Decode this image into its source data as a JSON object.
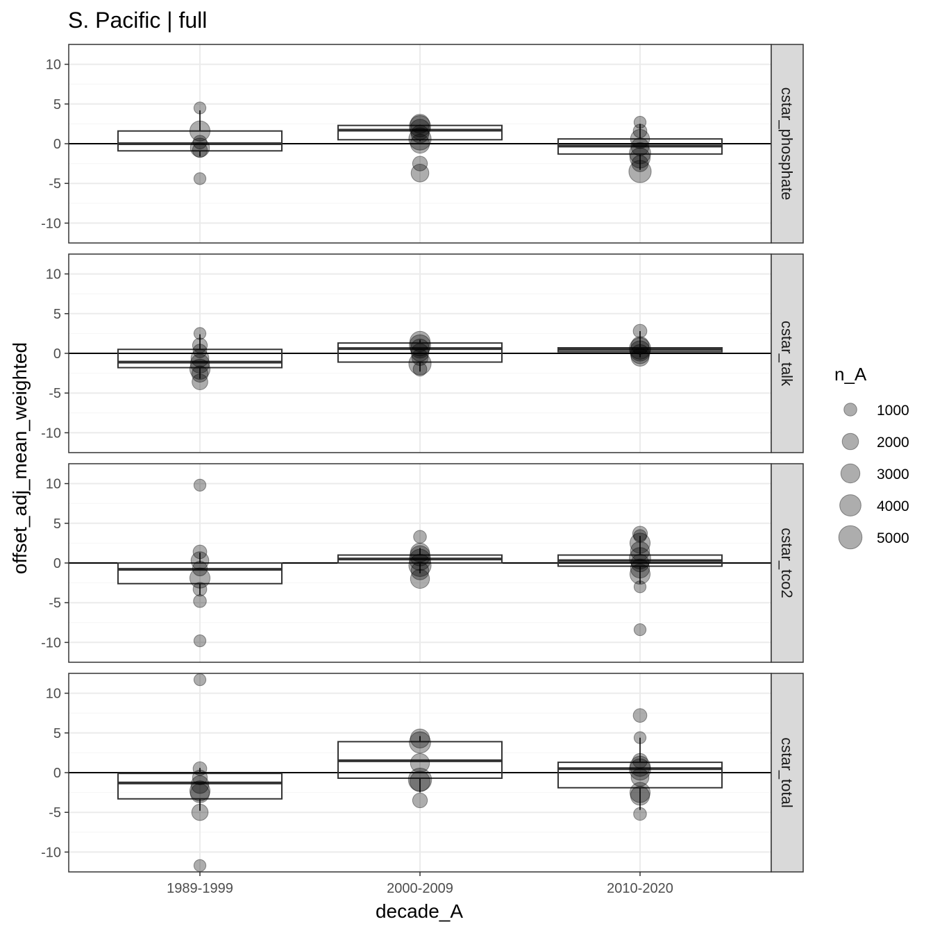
{
  "chart_data": {
    "type": "box",
    "title": "S. Pacific | full",
    "xlabel": "decade_A",
    "ylabel": "offset_adj_mean_weighted",
    "categories": [
      "1989-1999",
      "2000-2009",
      "2010-2020"
    ],
    "ylim": [
      -12.5,
      12.5
    ],
    "yticks": [
      -10,
      -5,
      0,
      5,
      10
    ],
    "reference_line_y": 0,
    "grid": true,
    "colors": {
      "points": "#000000",
      "box": "#333333",
      "strip": "#d9d9d9",
      "grid_major": "#ebebeb",
      "grid_minor": "#f5f5f5"
    },
    "legend": {
      "title": "n_A",
      "position": "right",
      "sizes": [
        1000,
        2000,
        3000,
        4000,
        5000
      ]
    },
    "panels": [
      {
        "name": "cstar_phosphate",
        "boxes": [
          {
            "category": "1989-1999",
            "q1": -0.9,
            "median": 0.0,
            "q3": 1.6,
            "whisker_low": -1.6,
            "whisker_high": 4.2
          },
          {
            "category": "2000-2009",
            "q1": 0.5,
            "median": 1.7,
            "q3": 2.3,
            "whisker_low": 0.3,
            "whisker_high": 2.4
          },
          {
            "category": "2010-2020",
            "q1": -1.3,
            "median": -0.3,
            "q3": 0.6,
            "whisker_low": -3.3,
            "whisker_high": 2.5
          }
        ],
        "points": [
          {
            "x": "1989-1999",
            "y": 4.5,
            "n": 800
          },
          {
            "x": "1989-1999",
            "y": 1.6,
            "n": 3500
          },
          {
            "x": "1989-1999",
            "y": 0.2,
            "n": 1200
          },
          {
            "x": "1989-1999",
            "y": -0.5,
            "n": 3000
          },
          {
            "x": "1989-1999",
            "y": -0.8,
            "n": 1500
          },
          {
            "x": "1989-1999",
            "y": -4.4,
            "n": 800
          },
          {
            "x": "2000-2009",
            "y": 2.5,
            "n": 3000
          },
          {
            "x": "2000-2009",
            "y": 2.2,
            "n": 4000
          },
          {
            "x": "2000-2009",
            "y": 1.8,
            "n": 3500
          },
          {
            "x": "2000-2009",
            "y": 1.2,
            "n": 2500
          },
          {
            "x": "2000-2009",
            "y": 0.6,
            "n": 4500
          },
          {
            "x": "2000-2009",
            "y": 0.0,
            "n": 3000
          },
          {
            "x": "2000-2009",
            "y": -2.5,
            "n": 1500
          },
          {
            "x": "2000-2009",
            "y": -3.7,
            "n": 2500
          },
          {
            "x": "2010-2020",
            "y": 2.7,
            "n": 800
          },
          {
            "x": "2010-2020",
            "y": 1.6,
            "n": 1200
          },
          {
            "x": "2010-2020",
            "y": 0.6,
            "n": 3000
          },
          {
            "x": "2010-2020",
            "y": -0.4,
            "n": 2500
          },
          {
            "x": "2010-2020",
            "y": -1.2,
            "n": 4000
          },
          {
            "x": "2010-2020",
            "y": -1.8,
            "n": 3500
          },
          {
            "x": "2010-2020",
            "y": -2.5,
            "n": 2000
          },
          {
            "x": "2010-2020",
            "y": -3.5,
            "n": 4500
          }
        ]
      },
      {
        "name": "cstar_talk",
        "boxes": [
          {
            "category": "1989-1999",
            "q1": -1.8,
            "median": -1.1,
            "q3": 0.5,
            "whisker_low": -3.2,
            "whisker_high": 2.4
          },
          {
            "category": "2000-2009",
            "q1": -1.1,
            "median": 0.6,
            "q3": 1.3,
            "whisker_low": -2.3,
            "whisker_high": 1.7
          },
          {
            "category": "2010-2020",
            "q1": 0.2,
            "median": 0.5,
            "q3": 0.7,
            "whisker_low": -0.5,
            "whisker_high": 2.8
          }
        ],
        "points": [
          {
            "x": "1989-1999",
            "y": 2.5,
            "n": 800
          },
          {
            "x": "1989-1999",
            "y": 1.0,
            "n": 1500
          },
          {
            "x": "1989-1999",
            "y": 0.3,
            "n": 1200
          },
          {
            "x": "1989-1999",
            "y": -0.6,
            "n": 2500
          },
          {
            "x": "1989-1999",
            "y": -1.3,
            "n": 3000
          },
          {
            "x": "1989-1999",
            "y": -2.0,
            "n": 3500
          },
          {
            "x": "1989-1999",
            "y": -2.6,
            "n": 2000
          },
          {
            "x": "1989-1999",
            "y": -3.6,
            "n": 1800
          },
          {
            "x": "2000-2009",
            "y": 1.5,
            "n": 3500
          },
          {
            "x": "2000-2009",
            "y": 1.0,
            "n": 4000
          },
          {
            "x": "2000-2009",
            "y": 0.6,
            "n": 3000
          },
          {
            "x": "2000-2009",
            "y": 0.1,
            "n": 2500
          },
          {
            "x": "2000-2009",
            "y": -0.5,
            "n": 2000
          },
          {
            "x": "2000-2009",
            "y": -1.3,
            "n": 4500
          },
          {
            "x": "2000-2009",
            "y": -2.0,
            "n": 1200
          },
          {
            "x": "2010-2020",
            "y": 2.8,
            "n": 1200
          },
          {
            "x": "2010-2020",
            "y": 1.0,
            "n": 2500
          },
          {
            "x": "2010-2020",
            "y": 0.6,
            "n": 4000
          },
          {
            "x": "2010-2020",
            "y": 0.3,
            "n": 3500
          },
          {
            "x": "2010-2020",
            "y": -0.1,
            "n": 3000
          },
          {
            "x": "2010-2020",
            "y": -0.5,
            "n": 2500
          }
        ]
      },
      {
        "name": "cstar_tco2",
        "boxes": [
          {
            "category": "1989-1999",
            "q1": -2.6,
            "median": -0.8,
            "q3": 0.0,
            "whisker_low": -4.0,
            "whisker_high": 1.3
          },
          {
            "category": "2000-2009",
            "q1": 0.0,
            "median": 0.5,
            "q3": 1.0,
            "whisker_low": -1.3,
            "whisker_high": 1.9
          },
          {
            "category": "2010-2020",
            "q1": -0.4,
            "median": 0.3,
            "q3": 1.0,
            "whisker_low": -2.6,
            "whisker_high": 3.4
          }
        ],
        "points": [
          {
            "x": "1989-1999",
            "y": 9.8,
            "n": 800
          },
          {
            "x": "1989-1999",
            "y": 1.4,
            "n": 1200
          },
          {
            "x": "1989-1999",
            "y": 0.3,
            "n": 2500
          },
          {
            "x": "1989-1999",
            "y": -0.7,
            "n": 1500
          },
          {
            "x": "1989-1999",
            "y": -1.9,
            "n": 3500
          },
          {
            "x": "1989-1999",
            "y": -3.3,
            "n": 1200
          },
          {
            "x": "1989-1999",
            "y": -4.8,
            "n": 1000
          },
          {
            "x": "1989-1999",
            "y": -9.8,
            "n": 800
          },
          {
            "x": "2000-2009",
            "y": 3.3,
            "n": 1000
          },
          {
            "x": "2000-2009",
            "y": 1.3,
            "n": 3000
          },
          {
            "x": "2000-2009",
            "y": 0.9,
            "n": 3500
          },
          {
            "x": "2000-2009",
            "y": 0.4,
            "n": 4000
          },
          {
            "x": "2000-2009",
            "y": -0.3,
            "n": 4500
          },
          {
            "x": "2000-2009",
            "y": -1.0,
            "n": 2500
          },
          {
            "x": "2000-2009",
            "y": -2.0,
            "n": 3000
          },
          {
            "x": "2010-2020",
            "y": 3.7,
            "n": 1500
          },
          {
            "x": "2010-2020",
            "y": 3.4,
            "n": 1000
          },
          {
            "x": "2010-2020",
            "y": 2.5,
            "n": 3500
          },
          {
            "x": "2010-2020",
            "y": 1.5,
            "n": 3000
          },
          {
            "x": "2010-2020",
            "y": 0.6,
            "n": 4000
          },
          {
            "x": "2010-2020",
            "y": 0.0,
            "n": 2500
          },
          {
            "x": "2010-2020",
            "y": -0.7,
            "n": 3000
          },
          {
            "x": "2010-2020",
            "y": -1.4,
            "n": 3500
          },
          {
            "x": "2010-2020",
            "y": -3.0,
            "n": 800
          },
          {
            "x": "2010-2020",
            "y": -8.4,
            "n": 800
          }
        ]
      },
      {
        "name": "cstar_total",
        "boxes": [
          {
            "category": "1989-1999",
            "q1": -3.3,
            "median": -1.3,
            "q3": -0.1,
            "whisker_low": -4.8,
            "whisker_high": 0.6
          },
          {
            "category": "2000-2009",
            "q1": -0.7,
            "median": 1.5,
            "q3": 3.9,
            "whisker_low": -2.5,
            "whisker_high": 4.6
          },
          {
            "category": "2010-2020",
            "q1": -1.9,
            "median": 0.5,
            "q3": 1.3,
            "whisker_low": -4.7,
            "whisker_high": 4.4
          }
        ],
        "points": [
          {
            "x": "1989-1999",
            "y": 11.7,
            "n": 800
          },
          {
            "x": "1989-1999",
            "y": 0.5,
            "n": 1200
          },
          {
            "x": "1989-1999",
            "y": -0.6,
            "n": 1500
          },
          {
            "x": "1989-1999",
            "y": -1.5,
            "n": 2500
          },
          {
            "x": "1989-1999",
            "y": -2.3,
            "n": 3500
          },
          {
            "x": "1989-1999",
            "y": -2.6,
            "n": 3000
          },
          {
            "x": "1989-1999",
            "y": -5.0,
            "n": 2000
          },
          {
            "x": "1989-1999",
            "y": -11.7,
            "n": 800
          },
          {
            "x": "2000-2009",
            "y": 4.3,
            "n": 3000
          },
          {
            "x": "2000-2009",
            "y": 3.8,
            "n": 4000
          },
          {
            "x": "2000-2009",
            "y": 1.2,
            "n": 3000
          },
          {
            "x": "2000-2009",
            "y": -0.9,
            "n": 5000
          },
          {
            "x": "2000-2009",
            "y": -1.1,
            "n": 3500
          },
          {
            "x": "2000-2009",
            "y": -3.5,
            "n": 1500
          },
          {
            "x": "2010-2020",
            "y": 7.2,
            "n": 1200
          },
          {
            "x": "2010-2020",
            "y": 4.4,
            "n": 800
          },
          {
            "x": "2010-2020",
            "y": 1.5,
            "n": 1500
          },
          {
            "x": "2010-2020",
            "y": 0.8,
            "n": 3500
          },
          {
            "x": "2010-2020",
            "y": 0.4,
            "n": 4000
          },
          {
            "x": "2010-2020",
            "y": -0.6,
            "n": 2500
          },
          {
            "x": "2010-2020",
            "y": -2.5,
            "n": 3500
          },
          {
            "x": "2010-2020",
            "y": -2.9,
            "n": 3000
          },
          {
            "x": "2010-2020",
            "y": -5.2,
            "n": 1000
          }
        ]
      }
    ]
  }
}
